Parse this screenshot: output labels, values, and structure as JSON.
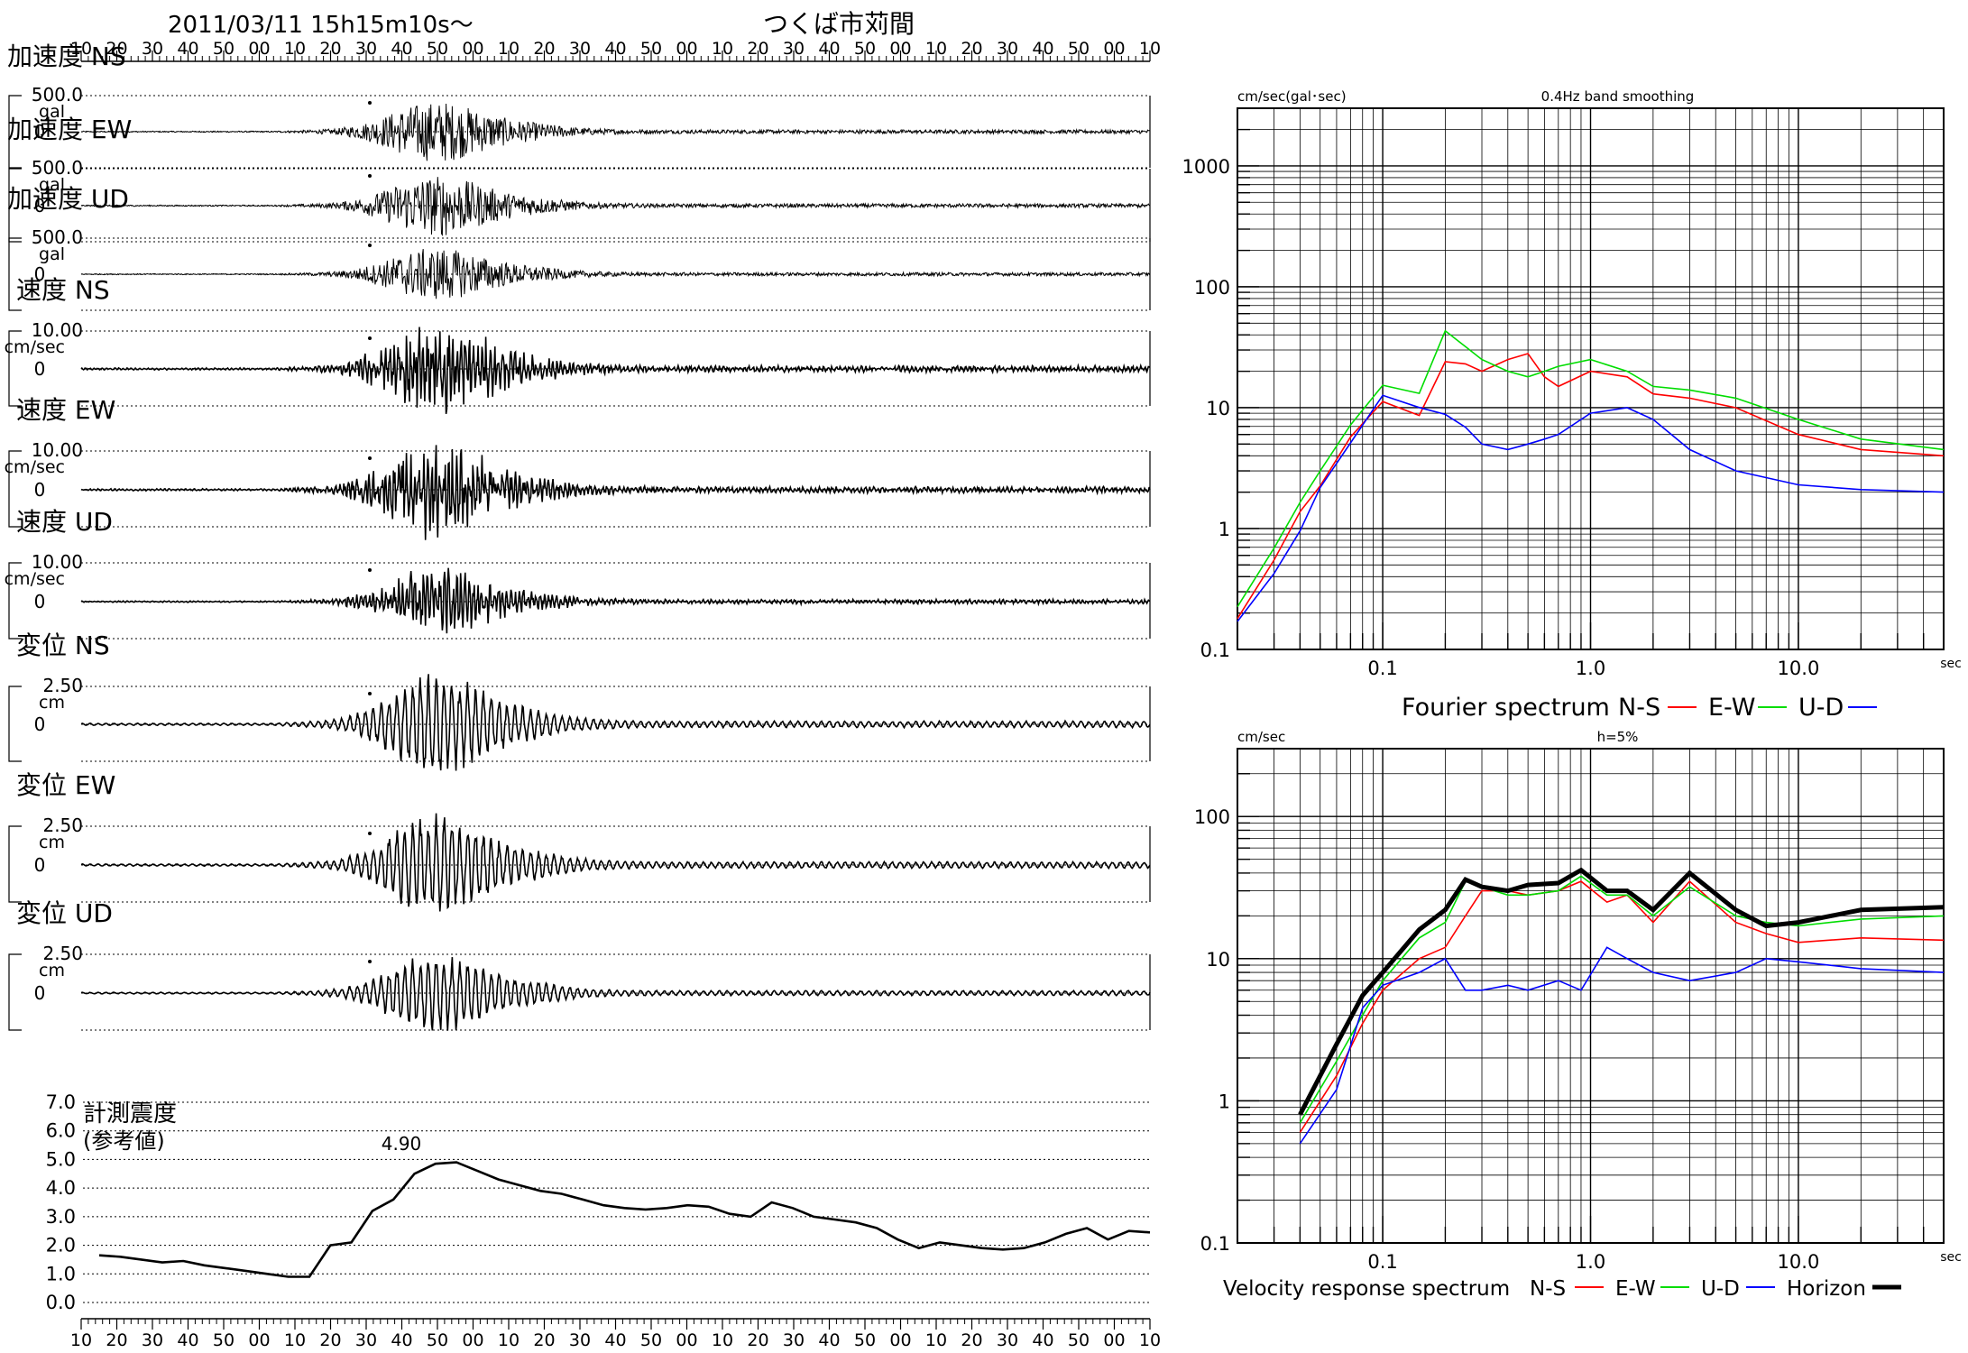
{
  "header": {
    "datetime": "2011/03/11  15h15m10s〜",
    "station": "つくば市苅間"
  },
  "time_ticks": [
    "10",
    "20",
    "30",
    "40",
    "50",
    "00",
    "10",
    "20",
    "30",
    "40",
    "50",
    "00",
    "10",
    "20",
    "30",
    "40",
    "50",
    "00",
    "10",
    "20",
    "30",
    "40",
    "50",
    "00",
    "10",
    "20",
    "30",
    "40",
    "50",
    "00",
    "10"
  ],
  "colors": {
    "ns": "#ff0000",
    "ew": "#00dd00",
    "ud": "#0000ff",
    "horizon": "#000000"
  },
  "chart_data": [
    {
      "type": "line",
      "name": "加速度 NS",
      "title": "加速度 NS",
      "scale_label": "500.0",
      "unit": "gal",
      "zero_label": "0",
      "peak": 500,
      "env": [
        0.02,
        0.02,
        0.02,
        0.02,
        0.02,
        0.02,
        0.02,
        0.02,
        0.02,
        0.02,
        0.04,
        0.06,
        0.1,
        0.22,
        0.42,
        0.72,
        0.9,
        0.95,
        0.78,
        0.58,
        0.4,
        0.3,
        0.22,
        0.14,
        0.1,
        0.08,
        0.07,
        0.06,
        0.06,
        0.06,
        0.06,
        0.06,
        0.06,
        0.06,
        0.06,
        0.06,
        0.06,
        0.06,
        0.06,
        0.06,
        0.06,
        0.06,
        0.06,
        0.06,
        0.06,
        0.06,
        0.06,
        0.06,
        0.06,
        0.06,
        0.06
      ]
    },
    {
      "type": "line",
      "name": "加速度 EW",
      "title": "加速度 EW",
      "scale_label": "500.0",
      "unit": "gal",
      "zero_label": "0",
      "peak": 500,
      "env": [
        0.02,
        0.02,
        0.02,
        0.02,
        0.02,
        0.02,
        0.02,
        0.02,
        0.02,
        0.02,
        0.04,
        0.06,
        0.1,
        0.22,
        0.42,
        0.72,
        0.9,
        0.95,
        0.78,
        0.58,
        0.4,
        0.3,
        0.22,
        0.14,
        0.1,
        0.08,
        0.07,
        0.06,
        0.06,
        0.06,
        0.06,
        0.06,
        0.06,
        0.06,
        0.06,
        0.06,
        0.06,
        0.06,
        0.06,
        0.06,
        0.06,
        0.06,
        0.06,
        0.06,
        0.06,
        0.06,
        0.06,
        0.06,
        0.06,
        0.06,
        0.06
      ]
    },
    {
      "type": "line",
      "name": "加速度 UD",
      "title": "加速度 UD",
      "scale_label": "500.0",
      "unit": "gal",
      "zero_label": "0",
      "peak": 500,
      "env": [
        0.02,
        0.02,
        0.02,
        0.02,
        0.02,
        0.02,
        0.02,
        0.02,
        0.02,
        0.02,
        0.04,
        0.06,
        0.1,
        0.22,
        0.42,
        0.72,
        0.9,
        0.95,
        0.78,
        0.58,
        0.4,
        0.3,
        0.22,
        0.14,
        0.1,
        0.08,
        0.07,
        0.06,
        0.06,
        0.06,
        0.06,
        0.06,
        0.06,
        0.06,
        0.06,
        0.06,
        0.06,
        0.06,
        0.06,
        0.06,
        0.06,
        0.06,
        0.06,
        0.06,
        0.06,
        0.06,
        0.06,
        0.06,
        0.06,
        0.06,
        0.06
      ]
    },
    {
      "type": "line",
      "name": "速度 NS",
      "title": "速度 NS",
      "scale_label": "10.00",
      "unit": "cm/sec",
      "zero_label": "0",
      "peak": 10,
      "env": [
        0.02,
        0.02,
        0.02,
        0.02,
        0.02,
        0.02,
        0.02,
        0.02,
        0.02,
        0.02,
        0.04,
        0.06,
        0.1,
        0.22,
        0.42,
        0.72,
        0.9,
        0.95,
        0.78,
        0.58,
        0.4,
        0.3,
        0.22,
        0.14,
        0.1,
        0.08,
        0.07,
        0.06,
        0.06,
        0.06,
        0.06,
        0.06,
        0.06,
        0.06,
        0.06,
        0.06,
        0.06,
        0.06,
        0.06,
        0.06,
        0.06,
        0.06,
        0.06,
        0.06,
        0.06,
        0.06,
        0.06,
        0.06,
        0.06,
        0.06,
        0.06
      ]
    },
    {
      "type": "line",
      "name": "速度 EW",
      "title": "速度 EW",
      "scale_label": "10.00",
      "unit": "cm/sec",
      "zero_label": "0",
      "peak": 10,
      "env": [
        0.02,
        0.02,
        0.02,
        0.02,
        0.02,
        0.02,
        0.02,
        0.02,
        0.02,
        0.02,
        0.04,
        0.06,
        0.1,
        0.22,
        0.42,
        0.72,
        0.9,
        0.95,
        0.78,
        0.58,
        0.4,
        0.3,
        0.22,
        0.14,
        0.1,
        0.08,
        0.07,
        0.06,
        0.06,
        0.06,
        0.06,
        0.06,
        0.06,
        0.06,
        0.06,
        0.06,
        0.06,
        0.06,
        0.06,
        0.06,
        0.06,
        0.06,
        0.06,
        0.06,
        0.06,
        0.06,
        0.06,
        0.06,
        0.06,
        0.06,
        0.06
      ]
    },
    {
      "type": "line",
      "name": "速度 UD",
      "title": "速度 UD",
      "scale_label": "10.00",
      "unit": "cm/sec",
      "zero_label": "0",
      "peak": 10,
      "env": [
        0.02,
        0.02,
        0.02,
        0.02,
        0.02,
        0.02,
        0.02,
        0.02,
        0.02,
        0.02,
        0.04,
        0.06,
        0.1,
        0.22,
        0.42,
        0.72,
        0.9,
        0.95,
        0.78,
        0.58,
        0.4,
        0.3,
        0.22,
        0.14,
        0.1,
        0.08,
        0.07,
        0.06,
        0.06,
        0.06,
        0.06,
        0.06,
        0.06,
        0.06,
        0.06,
        0.06,
        0.06,
        0.06,
        0.06,
        0.06,
        0.06,
        0.06,
        0.06,
        0.06,
        0.06,
        0.06,
        0.06,
        0.06,
        0.06,
        0.06,
        0.06
      ]
    },
    {
      "type": "line",
      "name": "変位 NS",
      "title": "変位 NS",
      "scale_label": "2.50",
      "unit": "cm",
      "zero_label": "0",
      "peak": 2.5,
      "env": [
        0.02,
        0.02,
        0.02,
        0.02,
        0.02,
        0.02,
        0.02,
        0.02,
        0.02,
        0.02,
        0.04,
        0.06,
        0.1,
        0.22,
        0.42,
        0.72,
        0.9,
        0.95,
        0.78,
        0.58,
        0.4,
        0.3,
        0.22,
        0.14,
        0.1,
        0.08,
        0.07,
        0.06,
        0.06,
        0.06,
        0.06,
        0.06,
        0.06,
        0.06,
        0.06,
        0.06,
        0.06,
        0.06,
        0.06,
        0.06,
        0.06,
        0.06,
        0.06,
        0.06,
        0.06,
        0.06,
        0.06,
        0.06,
        0.06,
        0.06,
        0.06
      ]
    },
    {
      "type": "line",
      "name": "変位 EW",
      "title": "変位 EW",
      "scale_label": "2.50",
      "unit": "cm",
      "zero_label": "0",
      "peak": 2.5,
      "env": [
        0.02,
        0.02,
        0.02,
        0.02,
        0.02,
        0.02,
        0.02,
        0.02,
        0.02,
        0.02,
        0.04,
        0.06,
        0.1,
        0.22,
        0.42,
        0.72,
        0.9,
        0.95,
        0.78,
        0.58,
        0.4,
        0.3,
        0.22,
        0.14,
        0.1,
        0.08,
        0.07,
        0.06,
        0.06,
        0.06,
        0.06,
        0.06,
        0.06,
        0.06,
        0.06,
        0.06,
        0.06,
        0.06,
        0.06,
        0.06,
        0.06,
        0.06,
        0.06,
        0.06,
        0.06,
        0.06,
        0.06,
        0.06,
        0.06,
        0.06,
        0.06
      ]
    },
    {
      "type": "line",
      "name": "変位 UD",
      "title": "変位 UD",
      "scale_label": "2.50",
      "unit": "cm",
      "zero_label": "0",
      "peak": 2.5,
      "env": [
        0.02,
        0.02,
        0.02,
        0.02,
        0.02,
        0.02,
        0.02,
        0.02,
        0.02,
        0.02,
        0.04,
        0.06,
        0.1,
        0.22,
        0.42,
        0.72,
        0.9,
        0.95,
        0.78,
        0.58,
        0.4,
        0.3,
        0.22,
        0.14,
        0.1,
        0.08,
        0.07,
        0.06,
        0.06,
        0.06,
        0.06,
        0.06,
        0.06,
        0.06,
        0.06,
        0.06,
        0.06,
        0.06,
        0.06,
        0.06,
        0.06,
        0.06,
        0.06,
        0.06,
        0.06,
        0.06,
        0.06,
        0.06,
        0.06,
        0.06,
        0.06
      ]
    },
    {
      "type": "line",
      "name": "計測震度",
      "title": "計測震度",
      "subtitle": "(参考値)",
      "yticks": [
        "0.0",
        "1.0",
        "2.0",
        "3.0",
        "4.0",
        "5.0",
        "6.0",
        "7.0"
      ],
      "ylim": [
        0,
        7
      ],
      "max_label": "4.90",
      "x": [
        0,
        1,
        2,
        3,
        4,
        5,
        6,
        7,
        8,
        9,
        10,
        11,
        12,
        13,
        14,
        15,
        16,
        17,
        18,
        19,
        20,
        21,
        22,
        23,
        24,
        25,
        26,
        27,
        28,
        29,
        30,
        31,
        32,
        33,
        34,
        35,
        36,
        37,
        38,
        39,
        40,
        41,
        42,
        43,
        44,
        45,
        46,
        47,
        48,
        49,
        50
      ],
      "values": [
        1.65,
        1.6,
        1.5,
        1.4,
        1.45,
        1.3,
        1.2,
        1.1,
        1.0,
        0.9,
        0.9,
        2.0,
        2.1,
        3.2,
        3.6,
        4.5,
        4.85,
        4.9,
        4.6,
        4.3,
        4.1,
        3.9,
        3.8,
        3.6,
        3.4,
        3.3,
        3.25,
        3.3,
        3.4,
        3.35,
        3.1,
        3.0,
        3.5,
        3.3,
        3.0,
        2.9,
        2.8,
        2.6,
        2.2,
        1.9,
        2.1,
        2.0,
        1.9,
        1.85,
        1.9,
        2.1,
        2.4,
        2.6,
        2.2,
        2.5,
        2.45
      ]
    },
    {
      "type": "line",
      "name": "Fourier spectrum",
      "title": "Fourier spectrum",
      "subtitle": "0.4Hz band smoothing",
      "ylabel": "cm/sec(gal･sec)",
      "xunit": "sec",
      "xlog": true,
      "ylog": true,
      "xlim": [
        0.02,
        50
      ],
      "ylim": [
        0.1,
        3000
      ],
      "xtick_labels": [
        "0.1",
        "1.0",
        "10.0"
      ],
      "ytick_labels": [
        "0.1",
        "1",
        "10",
        "100",
        "1000"
      ],
      "legend": [
        "N-S",
        "E-W",
        "U-D"
      ],
      "x": [
        0.02,
        0.03,
        0.04,
        0.05,
        0.07,
        0.1,
        0.15,
        0.2,
        0.25,
        0.3,
        0.4,
        0.5,
        0.6,
        0.7,
        1.0,
        1.5,
        2.0,
        3.0,
        5.0,
        10.0,
        20.0,
        50.0
      ],
      "series": [
        {
          "name": "N-S",
          "values": [
            0.18,
            0.5,
            1.2,
            2.0,
            5.5,
            12,
            10,
            28,
            25,
            20,
            25,
            28,
            18,
            15,
            20,
            18,
            13,
            12,
            10,
            6,
            4.5,
            4.0
          ]
        },
        {
          "name": "E-W",
          "values": [
            0.2,
            0.6,
            1.5,
            3.0,
            8.0,
            18,
            15,
            45,
            30,
            25,
            20,
            18,
            20,
            22,
            25,
            20,
            15,
            14,
            12,
            8,
            5.5,
            4.5
          ]
        },
        {
          "name": "U-D",
          "values": [
            0.15,
            0.4,
            1.0,
            2.5,
            6.0,
            14,
            10,
            8,
            6,
            5,
            4.5,
            5,
            5.5,
            6,
            9,
            10,
            8,
            4.5,
            3.0,
            2.3,
            2.1,
            2.0
          ]
        }
      ]
    },
    {
      "type": "line",
      "name": "Velocity response spectrum",
      "title": "Velocity response spectrum",
      "subtitle": "h=5%",
      "ylabel": "cm/sec",
      "xunit": "sec",
      "xlog": true,
      "ylog": true,
      "xlim": [
        0.02,
        50
      ],
      "ylim": [
        0.1,
        300
      ],
      "xtick_labels": [
        "0.1",
        "1.0",
        "10.0"
      ],
      "ytick_labels": [
        "0.1",
        "1",
        "10",
        "100"
      ],
      "legend": [
        "N-S",
        "E-W",
        "U-D",
        "Horizon"
      ],
      "x": [
        0.04,
        0.06,
        0.08,
        0.1,
        0.15,
        0.2,
        0.25,
        0.3,
        0.4,
        0.5,
        0.7,
        0.9,
        1.2,
        1.5,
        2.0,
        3.0,
        5.0,
        7.0,
        10.0,
        20.0,
        50.0
      ],
      "series": [
        {
          "name": "N-S",
          "values": [
            0.6,
            1.5,
            3.5,
            6,
            10,
            12,
            20,
            30,
            30,
            28,
            30,
            35,
            25,
            28,
            18,
            35,
            18,
            15,
            13,
            14,
            13.5
          ]
        },
        {
          "name": "E-W",
          "values": [
            0.7,
            1.9,
            4,
            7,
            14,
            18,
            35,
            32,
            28,
            28,
            30,
            38,
            28,
            28,
            20,
            32,
            20,
            18,
            17,
            19,
            20
          ]
        },
        {
          "name": "U-D",
          "values": [
            0.5,
            1.2,
            4.5,
            6.5,
            8,
            10,
            6,
            6,
            6.5,
            6,
            7,
            6,
            12,
            10,
            8,
            7,
            8,
            10,
            9.5,
            8.5,
            8
          ]
        },
        {
          "name": "Horizon",
          "values": [
            0.8,
            2.5,
            5.5,
            8,
            16,
            22,
            36,
            32,
            30,
            33,
            34,
            42,
            30,
            30,
            22,
            40,
            22,
            17,
            18,
            22,
            23
          ]
        }
      ]
    }
  ]
}
